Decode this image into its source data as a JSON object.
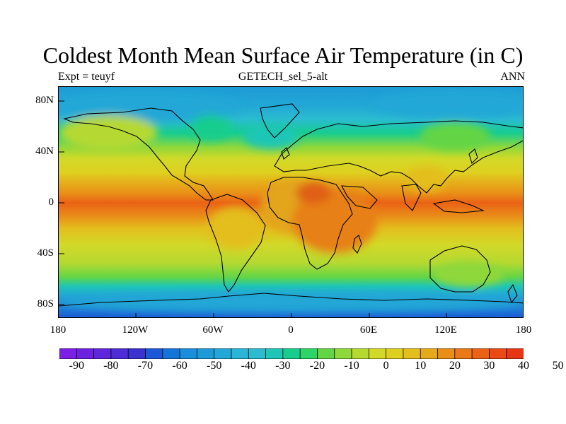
{
  "header": {
    "title": "Coldest Month Mean Surface Air Temperature (in C)",
    "left_label": "Expt = teuyf",
    "center_label": "GETECH_sel_5-alt",
    "right_label": "ANN"
  },
  "map": {
    "projection": "cylindrical-equidistant",
    "y_ticks": [
      "80N",
      "40N",
      "0",
      "40S",
      "80S"
    ],
    "x_ticks": [
      "180",
      "120W",
      "60W",
      "0",
      "60E",
      "120E",
      "180"
    ],
    "field": "coldest month mean surface air temperature",
    "units": "C"
  },
  "colorbar": {
    "labels": [
      "-90",
      "-80",
      "-70",
      "-60",
      "-50",
      "-40",
      "-30",
      "-20",
      "-10",
      "0",
      "10",
      "20",
      "30",
      "40",
      "50"
    ],
    "colors": [
      "#7a1fe4",
      "#6c22e0",
      "#5e27dc",
      "#4d2bd6",
      "#3a31cf",
      "#1b57d6",
      "#1375d8",
      "#1a8edb",
      "#1e9bd6",
      "#22a7d6",
      "#2ab4d6",
      "#2bbcd0",
      "#1fc6b6",
      "#17cd8e",
      "#2dd468",
      "#63d545",
      "#8fd83a",
      "#b5d931",
      "#d2d928",
      "#dfd020",
      "#e3be1c",
      "#e6a91a",
      "#e98f18",
      "#ea7816",
      "#eb6215",
      "#ea4a14",
      "#e83514"
    ]
  },
  "regions": {
    "land_colors": [
      "#e8c21c",
      "#e3a51a",
      "#e78018",
      "#df5e12",
      "#96d63a",
      "#22a7d6"
    ]
  }
}
